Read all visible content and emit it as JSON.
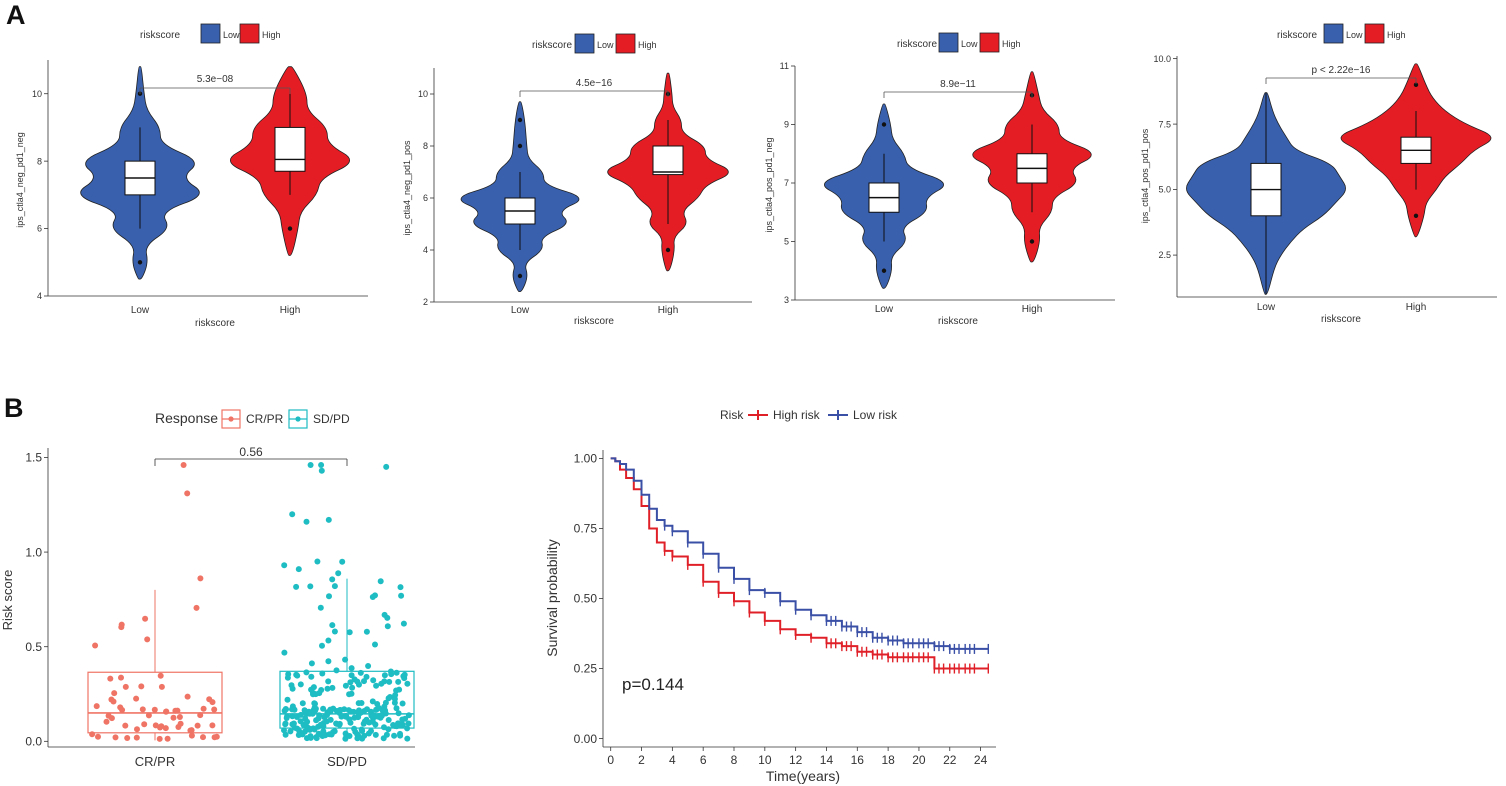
{
  "panel_labels": {
    "a": "A",
    "b": "B"
  },
  "colors": {
    "low": "#3860ad",
    "high": "#e41d25",
    "crpr": "#ef7466",
    "sdpd": "#1ebcc3",
    "km_high": "#e02028",
    "km_low": "#3a4fa6",
    "axis": "#333333",
    "text": "#333333"
  },
  "chart_data": [
    {
      "type": "violin",
      "title": "",
      "legend_title": "riskscore",
      "legend": [
        "Low",
        "High"
      ],
      "xlabel": "riskscore",
      "ylabel": "ips_ctla4_neg_pd1_neg",
      "categories": [
        "Low",
        "High"
      ],
      "ylim": [
        4,
        11
      ],
      "yticks": [
        4,
        6,
        8,
        10
      ],
      "ytick_labels": [
        "4",
        "6",
        "8",
        "10"
      ],
      "pvalue": "5.3e−08",
      "groups": [
        {
          "name": "Low",
          "range": [
            4.5,
            10.8
          ],
          "box": [
            7,
            7.5,
            8
          ],
          "whisker": [
            6,
            9
          ],
          "outliers": [
            5,
            10
          ],
          "density": [
            [
              4.5,
              0.03
            ],
            [
              5,
              0.12
            ],
            [
              5.5,
              0.07
            ],
            [
              6,
              0.45
            ],
            [
              6.5,
              0.3
            ],
            [
              7,
              1.0
            ],
            [
              7.5,
              0.6
            ],
            [
              8,
              0.9
            ],
            [
              8.5,
              0.3
            ],
            [
              9,
              0.3
            ],
            [
              9.5,
              0.1
            ],
            [
              10,
              0.06
            ],
            [
              10.8,
              0.02
            ]
          ]
        },
        {
          "name": "High",
          "range": [
            5.2,
            10.8
          ],
          "box": [
            7.7,
            8.05,
            9
          ],
          "whisker": [
            7,
            10
          ],
          "outliers": [
            6
          ],
          "density": [
            [
              5.2,
              0.03
            ],
            [
              6,
              0.12
            ],
            [
              6.5,
              0.15
            ],
            [
              7,
              0.4
            ],
            [
              7.5,
              0.45
            ],
            [
              8,
              1.0
            ],
            [
              8.5,
              0.55
            ],
            [
              9,
              0.55
            ],
            [
              9.5,
              0.25
            ],
            [
              10,
              0.25
            ],
            [
              10.8,
              0.04
            ]
          ]
        }
      ]
    },
    {
      "type": "violin",
      "legend_title": "riskscore",
      "legend": [
        "Low",
        "High"
      ],
      "xlabel": "riskscore",
      "ylabel": "ips_ctla4_neg_pd1_pos",
      "categories": [
        "Low",
        "High"
      ],
      "ylim": [
        2,
        11
      ],
      "yticks": [
        2,
        4,
        6,
        8,
        10
      ],
      "ytick_labels": [
        "2",
        "4",
        "6",
        "8",
        "10"
      ],
      "pvalue": "4.5e−16",
      "groups": [
        {
          "name": "Low",
          "range": [
            2.4,
            9.7
          ],
          "box": [
            5,
            5.5,
            6
          ],
          "whisker": [
            4,
            7
          ],
          "outliers": [
            3,
            8,
            9
          ],
          "density": [
            [
              2.4,
              0.03
            ],
            [
              3,
              0.12
            ],
            [
              3.5,
              0.06
            ],
            [
              4,
              0.35
            ],
            [
              4.5,
              0.3
            ],
            [
              5,
              0.75
            ],
            [
              5.5,
              0.55
            ],
            [
              6,
              1.0
            ],
            [
              6.5,
              0.35
            ],
            [
              7,
              0.35
            ],
            [
              7.5,
              0.12
            ],
            [
              8,
              0.1
            ],
            [
              9,
              0.07
            ],
            [
              9.7,
              0.02
            ]
          ]
        },
        {
          "name": "High",
          "range": [
            3.2,
            10.8
          ],
          "box": [
            6.9,
            7,
            8
          ],
          "whisker": [
            5,
            9
          ],
          "outliers": [
            4,
            10
          ],
          "density": [
            [
              3.2,
              0.03
            ],
            [
              4,
              0.1
            ],
            [
              4.5,
              0.08
            ],
            [
              5,
              0.3
            ],
            [
              5.5,
              0.2
            ],
            [
              6,
              0.45
            ],
            [
              6.5,
              0.55
            ],
            [
              7,
              1.0
            ],
            [
              7.5,
              0.55
            ],
            [
              8,
              0.55
            ],
            [
              8.5,
              0.2
            ],
            [
              9,
              0.2
            ],
            [
              9.5,
              0.07
            ],
            [
              10,
              0.06
            ],
            [
              10.8,
              0.02
            ]
          ]
        }
      ]
    },
    {
      "type": "violin",
      "legend_title": "riskscore",
      "legend": [
        "Low",
        "High"
      ],
      "xlabel": "riskscore",
      "ylabel": "ips_ctla4_pos_pd1_neg",
      "categories": [
        "Low",
        "High"
      ],
      "ylim": [
        3,
        11
      ],
      "yticks": [
        3,
        5,
        7,
        9,
        11
      ],
      "ytick_labels": [
        "3",
        "5",
        "7",
        "9",
        "11"
      ],
      "pvalue": "8.9e−11",
      "groups": [
        {
          "name": "Low",
          "range": [
            3.4,
            9.7
          ],
          "box": [
            6,
            6.5,
            7
          ],
          "whisker": [
            5,
            8
          ],
          "outliers": [
            4,
            9
          ],
          "density": [
            [
              3.4,
              0.03
            ],
            [
              4,
              0.12
            ],
            [
              4.5,
              0.1
            ],
            [
              5,
              0.35
            ],
            [
              5.5,
              0.25
            ],
            [
              6,
              0.65
            ],
            [
              6.5,
              0.6
            ],
            [
              7,
              1.0
            ],
            [
              7.5,
              0.35
            ],
            [
              8,
              0.3
            ],
            [
              8.5,
              0.12
            ],
            [
              9,
              0.1
            ],
            [
              9.7,
              0.02
            ]
          ]
        },
        {
          "name": "High",
          "range": [
            4.3,
            10.8
          ],
          "box": [
            7,
            7.5,
            8
          ],
          "whisker": [
            6,
            9
          ],
          "outliers": [
            5,
            10
          ],
          "density": [
            [
              4.3,
              0.03
            ],
            [
              5,
              0.12
            ],
            [
              5.5,
              0.1
            ],
            [
              6,
              0.3
            ],
            [
              6.5,
              0.3
            ],
            [
              7,
              0.7
            ],
            [
              7.5,
              0.55
            ],
            [
              8,
              1.0
            ],
            [
              8.5,
              0.4
            ],
            [
              9,
              0.4
            ],
            [
              9.5,
              0.15
            ],
            [
              10,
              0.1
            ],
            [
              10.8,
              0.02
            ]
          ]
        }
      ]
    },
    {
      "type": "violin",
      "legend_title": "riskscore",
      "legend": [
        "Low",
        "High"
      ],
      "xlabel": "riskscore",
      "ylabel": "ips_ctla4_pos_pd1_pos",
      "categories": [
        "Low",
        "High"
      ],
      "ylim": [
        0.9,
        10.1
      ],
      "yticks": [
        2.5,
        5.0,
        7.5,
        10.0
      ],
      "ytick_labels": [
        "2.5",
        "5.0",
        "7.5",
        "10.0"
      ],
      "pvalue": "p < 2.22e−16",
      "groups": [
        {
          "name": "Low",
          "range": [
            1,
            8.7
          ],
          "box": [
            4,
            5,
            6
          ],
          "whisker": [
            1,
            8.7
          ],
          "outliers": [],
          "density": [
            [
              1,
              0.02
            ],
            [
              2,
              0.1
            ],
            [
              2.5,
              0.18
            ],
            [
              3,
              0.3
            ],
            [
              3.5,
              0.45
            ],
            [
              4,
              0.7
            ],
            [
              4.5,
              0.85
            ],
            [
              5,
              1.0
            ],
            [
              5.5,
              0.9
            ],
            [
              6,
              0.8
            ],
            [
              6.5,
              0.35
            ],
            [
              7,
              0.25
            ],
            [
              7.5,
              0.15
            ],
            [
              8,
              0.08
            ],
            [
              8.7,
              0.02
            ]
          ]
        },
        {
          "name": "High",
          "range": [
            3.2,
            9.8
          ],
          "box": [
            6,
            6.5,
            7
          ],
          "whisker": [
            5,
            8
          ],
          "outliers": [
            4,
            9
          ],
          "density": [
            [
              3.2,
              0.02
            ],
            [
              4,
              0.1
            ],
            [
              4.5,
              0.12
            ],
            [
              5,
              0.25
            ],
            [
              5.5,
              0.35
            ],
            [
              6,
              0.55
            ],
            [
              6.5,
              0.7
            ],
            [
              7,
              1.0
            ],
            [
              7.5,
              0.6
            ],
            [
              8,
              0.35
            ],
            [
              8.5,
              0.2
            ],
            [
              9,
              0.12
            ],
            [
              9.8,
              0.02
            ]
          ]
        }
      ]
    },
    {
      "type": "box",
      "legend_title": "Response",
      "legend": [
        "CR/PR",
        "SD/PD"
      ],
      "xlabel": "",
      "ylabel": "Risk score",
      "categories": [
        "CR/PR",
        "SD/PD"
      ],
      "ylim": [
        -0.03,
        1.55
      ],
      "yticks": [
        0.0,
        0.5,
        1.0,
        1.5
      ],
      "ytick_labels": [
        "0.0",
        "0.5",
        "1.0",
        "1.5"
      ],
      "pvalue": "0.56",
      "groups": [
        {
          "name": "CR/PR",
          "box": [
            0.045,
            0.15,
            0.365
          ],
          "whisker": [
            0.005,
            0.8
          ],
          "n_points": 62,
          "max_points": [
            1.46,
            1.31
          ]
        },
        {
          "name": "SD/PD",
          "box": [
            0.07,
            0.145,
            0.37
          ],
          "whisker": [
            0.0,
            0.86
          ],
          "n_points": 260,
          "max_points": [
            1.46,
            1.46,
            1.45,
            1.43,
            1.2,
            1.17,
            1.16
          ]
        }
      ]
    },
    {
      "type": "line",
      "legend_title": "Risk",
      "legend": [
        "High risk",
        "Low risk"
      ],
      "xlabel": "Time(years)",
      "ylabel": "Survival probability",
      "xlim": [
        -0.5,
        25
      ],
      "ylim": [
        -0.03,
        1.03
      ],
      "xticks": [
        0,
        2,
        4,
        6,
        8,
        10,
        12,
        14,
        16,
        18,
        20,
        22,
        24
      ],
      "xtick_labels": [
        "0",
        "2",
        "4",
        "6",
        "8",
        "10",
        "12",
        "14",
        "16",
        "18",
        "20",
        "22",
        "24"
      ],
      "yticks": [
        0.0,
        0.25,
        0.5,
        0.75,
        1.0
      ],
      "ytick_labels": [
        "0.00",
        "0.25",
        "0.50",
        "0.75",
        "1.00"
      ],
      "annotation": "p=0.144",
      "series": [
        {
          "name": "High risk",
          "x": [
            0,
            0.3,
            0.6,
            1,
            1.5,
            2,
            2.5,
            3,
            3.5,
            4,
            5,
            6,
            7,
            8,
            9,
            10,
            11,
            12,
            13,
            14,
            15,
            16,
            17,
            18,
            19,
            20,
            21,
            22,
            23,
            24.5
          ],
          "y": [
            1.0,
            0.99,
            0.96,
            0.93,
            0.89,
            0.83,
            0.75,
            0.7,
            0.67,
            0.65,
            0.62,
            0.56,
            0.52,
            0.49,
            0.45,
            0.42,
            0.39,
            0.37,
            0.36,
            0.34,
            0.33,
            0.31,
            0.3,
            0.29,
            0.29,
            0.29,
            0.25,
            0.25,
            0.25,
            0.25
          ]
        },
        {
          "name": "Low risk",
          "x": [
            0,
            0.3,
            0.6,
            1,
            1.5,
            2,
            2.5,
            3,
            3.5,
            4,
            5,
            6,
            7,
            8,
            9,
            10,
            11,
            12,
            13,
            14,
            15,
            16,
            17,
            18,
            19,
            20,
            21,
            22,
            23,
            24.5
          ],
          "y": [
            1.0,
            0.99,
            0.98,
            0.96,
            0.92,
            0.87,
            0.82,
            0.78,
            0.76,
            0.74,
            0.7,
            0.66,
            0.61,
            0.57,
            0.53,
            0.52,
            0.49,
            0.46,
            0.44,
            0.42,
            0.4,
            0.38,
            0.36,
            0.35,
            0.34,
            0.34,
            0.33,
            0.32,
            0.32,
            0.32
          ]
        }
      ]
    }
  ]
}
